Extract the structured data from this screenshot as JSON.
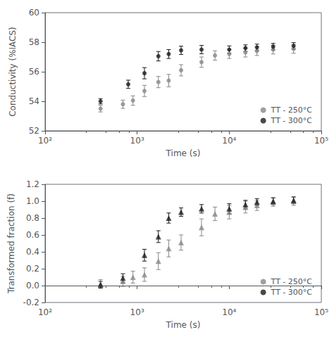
{
  "chart_data": [
    {
      "type": "scatter",
      "xlabel": "Time (s)",
      "ylabel": "Conductivity (%IACS)",
      "log": "x",
      "grid": false,
      "legend": "lower right",
      "xlim": [
        100,
        100000
      ],
      "xticks": [
        {
          "value": 100,
          "label": "10²"
        },
        {
          "value": 1000,
          "label": "10³"
        },
        {
          "value": 10000,
          "label": "10⁴"
        },
        {
          "value": 100000,
          "label": "10⁵"
        }
      ],
      "ylim": [
        52,
        60
      ],
      "yticks": [
        52,
        54,
        56,
        58,
        60
      ],
      "series": [
        {
          "name": "TT - 250°C",
          "color": "#888888",
          "marker": "circle",
          "x": [
            400,
            700,
            900,
            1200,
            1700,
            2200,
            3000,
            5000,
            7000,
            10000,
            15000,
            20000,
            30000,
            50000
          ],
          "values": [
            53.5,
            53.8,
            54.05,
            54.7,
            55.3,
            55.4,
            56.1,
            56.65,
            57.1,
            57.2,
            57.3,
            57.4,
            57.5,
            57.55
          ],
          "yerr": [
            0.22,
            0.28,
            0.32,
            0.38,
            0.38,
            0.42,
            0.38,
            0.35,
            0.32,
            0.3,
            0.3,
            0.3,
            0.3,
            0.3
          ]
        },
        {
          "name": "TT - 300°C",
          "color": "#1a1a1a",
          "marker": "circle",
          "x": [
            400,
            800,
            1200,
            1700,
            2200,
            3000,
            5000,
            10000,
            15000,
            20000,
            30000,
            50000
          ],
          "values": [
            54.0,
            55.15,
            55.9,
            57.05,
            57.2,
            57.45,
            57.5,
            57.5,
            57.6,
            57.65,
            57.7,
            57.75
          ],
          "yerr": [
            0.18,
            0.28,
            0.38,
            0.32,
            0.3,
            0.28,
            0.28,
            0.25,
            0.22,
            0.22,
            0.22,
            0.22
          ]
        }
      ]
    },
    {
      "type": "scatter",
      "xlabel": "Time (s)",
      "ylabel": "Transformed fraction (f)",
      "log": "x",
      "grid": false,
      "legend": "lower right",
      "xlim": [
        100,
        100000
      ],
      "xticks": [
        {
          "value": 100,
          "label": "10²"
        },
        {
          "value": 1000,
          "label": "10³"
        },
        {
          "value": 10000,
          "label": "10⁴"
        },
        {
          "value": 100000,
          "label": "10⁵"
        }
      ],
      "ylim": [
        -0.2,
        1.2
      ],
      "yticks": [
        -0.2,
        {
          "value": 0.0,
          "label": "0.0"
        },
        0.2,
        0.4,
        0.6,
        0.8,
        {
          "value": 1.0,
          "label": "1.0"
        },
        1.2
      ],
      "series": [
        {
          "name": "TT - 250°C",
          "color": "#888888",
          "marker": "triangle",
          "x": [
            400,
            700,
            900,
            1200,
            1700,
            2200,
            3000,
            5000,
            7000,
            10000,
            15000,
            20000,
            30000,
            50000
          ],
          "values": [
            0.02,
            0.05,
            0.1,
            0.13,
            0.29,
            0.44,
            0.51,
            0.69,
            0.85,
            0.87,
            0.93,
            0.95,
            0.99,
            1.0
          ],
          "yerr": [
            0.05,
            0.06,
            0.07,
            0.08,
            0.1,
            0.1,
            0.09,
            0.1,
            0.08,
            0.08,
            0.07,
            0.06,
            0.05,
            0.05
          ]
        },
        {
          "name": "TT - 300°C",
          "color": "#1a1a1a",
          "marker": "triangle",
          "x": [
            400,
            700,
            1200,
            1700,
            2200,
            3000,
            5000,
            10000,
            15000,
            20000,
            30000,
            50000
          ],
          "values": [
            0.01,
            0.09,
            0.36,
            0.58,
            0.8,
            0.87,
            0.91,
            0.91,
            0.96,
            0.99,
            1.0,
            1.01
          ],
          "yerr": [
            0.04,
            0.05,
            0.07,
            0.07,
            0.06,
            0.05,
            0.05,
            0.06,
            0.05,
            0.04,
            0.04,
            0.04
          ]
        }
      ]
    }
  ]
}
